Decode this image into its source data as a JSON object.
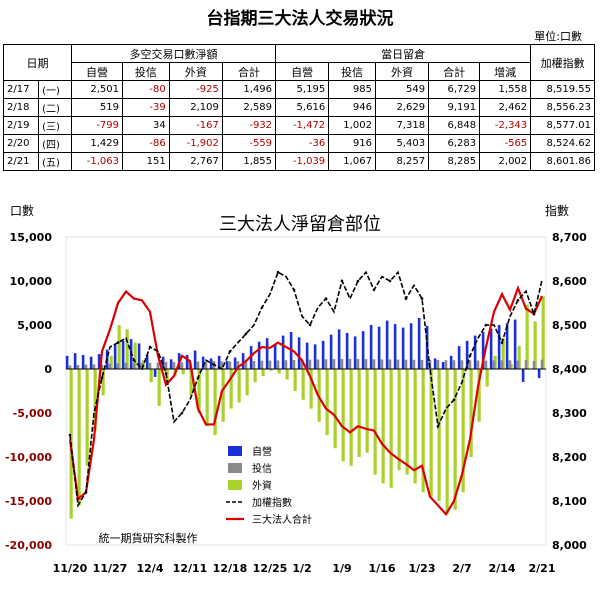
{
  "table": {
    "title": "台指期三大法人交易狀況",
    "unit": "單位:口數",
    "date_header": "日期",
    "group1": "多空交易口數淨額",
    "group2": "當日留倉",
    "index_header": "加權指數",
    "sub1": [
      "自營",
      "投信",
      "外資",
      "合計"
    ],
    "sub2": [
      "自營",
      "投信",
      "外資",
      "合計",
      "增減"
    ],
    "rows": [
      {
        "date": "2/17",
        "day": "(一)",
        "net": [
          "2,501",
          "-80",
          "-925",
          "1,496"
        ],
        "oi": [
          "5,195",
          "985",
          "549",
          "6,729",
          "1,558"
        ],
        "index": "8,519.55"
      },
      {
        "date": "2/18",
        "day": "(二)",
        "net": [
          "519",
          "-39",
          "2,109",
          "2,589"
        ],
        "oi": [
          "5,616",
          "946",
          "2,629",
          "9,191",
          "2,462"
        ],
        "index": "8,556.23"
      },
      {
        "date": "2/19",
        "day": "(三)",
        "net": [
          "-799",
          "34",
          "-167",
          "-932"
        ],
        "oi": [
          "-1,472",
          "1,002",
          "7,318",
          "6,848",
          "-2,343"
        ],
        "index": "8,577.01"
      },
      {
        "date": "2/20",
        "day": "(四)",
        "net": [
          "1,429",
          "-86",
          "-1,902",
          "-559"
        ],
        "oi": [
          "-36",
          "916",
          "5,403",
          "6,283",
          "-565"
        ],
        "index": "8,524.62"
      },
      {
        "date": "2/21",
        "day": "(五)",
        "net": [
          "-1,063",
          "151",
          "2,767",
          "1,855"
        ],
        "oi": [
          "-1,039",
          "1,067",
          "8,257",
          "8,285",
          "2,002"
        ],
        "index": "8,601.86"
      }
    ]
  },
  "chart_data": {
    "type": "bar",
    "title": "三大法人淨留倉部位",
    "ylabel": "口數",
    "y2label": "指數",
    "ylim": [
      -20000,
      15000
    ],
    "y2lim": [
      8000,
      8700
    ],
    "yticks": [
      "15,000",
      "10,000",
      "5,000",
      "0",
      "-5,000",
      "-10,000",
      "-15,000",
      "-20,000"
    ],
    "y2ticks": [
      "8,700",
      "8,600",
      "8,500",
      "8,400",
      "8,300",
      "8,200",
      "8,100",
      "8,000"
    ],
    "xticks": [
      "11/20",
      "11/27",
      "12/4",
      "12/11",
      "12/18",
      "12/25",
      "1/2",
      "1/9",
      "1/16",
      "1/23",
      "2/7",
      "2/14",
      "2/21"
    ],
    "xtick_index": [
      0,
      5,
      10,
      15,
      20,
      25,
      29,
      34,
      39,
      44,
      49,
      54,
      59
    ],
    "legend": [
      "自營",
      "投信",
      "外資",
      "加權指數",
      "三大法人合計"
    ],
    "legend_position": "bottom-left",
    "annotation": "統一期貨研究科製作",
    "colors": {
      "dealer": "#1a2fd6",
      "trust": "#8a8a8a",
      "foreign": "#a8d12a",
      "index": "#000000",
      "total": "#dd0000"
    },
    "series": [
      {
        "name": "自營",
        "values": [
          1500,
          1800,
          1600,
          1400,
          1700,
          2200,
          2800,
          3200,
          3400,
          2900,
          1600,
          -900,
          1400,
          1100,
          1800,
          1600,
          2100,
          1400,
          1200,
          1500,
          900,
          1300,
          1800,
          2600,
          3100,
          3500,
          2800,
          3800,
          4200,
          3600,
          3000,
          2800,
          3200,
          3900,
          4500,
          4100,
          3700,
          4300,
          5000,
          4800,
          5500,
          5100,
          4700,
          5200,
          5800,
          4900,
          1200,
          800,
          1500,
          2600,
          3200,
          3800,
          4200,
          4600,
          5000,
          5195,
          5616,
          -1472,
          -36,
          -1039
        ]
      },
      {
        "name": "投信",
        "values": [
          400,
          450,
          500,
          520,
          480,
          600,
          650,
          700,
          720,
          680,
          700,
          750,
          800,
          780,
          760,
          820,
          850,
          880,
          900,
          870,
          850,
          880,
          900,
          920,
          940,
          960,
          980,
          1000,
          1020,
          1040,
          1060,
          1080,
          1100,
          1120,
          1140,
          1150,
          1140,
          1120,
          1100,
          1090,
          1080,
          1070,
          1060,
          1050,
          1040,
          1030,
          1020,
          1010,
          1000,
          990,
          980,
          970,
          960,
          975,
          985,
          985,
          946,
          1002,
          916,
          1067
        ]
      },
      {
        "name": "外資",
        "values": [
          -17000,
          -15500,
          -11000,
          -7000,
          -3000,
          1500,
          5000,
          4500,
          3000,
          1000,
          -1500,
          -4200,
          -1500,
          -800,
          -600,
          -3000,
          -5000,
          -6500,
          -7500,
          -6000,
          -4500,
          -3800,
          -3000,
          -1500,
          -800,
          -200,
          -500,
          -1200,
          -2500,
          -3500,
          -4500,
          -6000,
          -7500,
          -9000,
          -10500,
          -11000,
          -10000,
          -9500,
          -12000,
          -13000,
          -13500,
          -11500,
          -12000,
          -13000,
          -14000,
          -14500,
          -15000,
          -16500,
          -16000,
          -14000,
          -10000,
          -6000,
          -2000,
          1500,
          3500,
          549,
          2629,
          7318,
          5403,
          8257
        ]
      },
      {
        "name": "三大法人合計",
        "values": [
          -8000,
          -14800,
          -14000,
          -8000,
          2000,
          4500,
          7500,
          8800,
          8000,
          7800,
          6500,
          1500,
          -1800,
          -800,
          1500,
          900,
          -4500,
          -6300,
          -6300,
          -2500,
          -1200,
          200,
          900,
          1800,
          2500,
          2400,
          3000,
          2500,
          2000,
          1000,
          -800,
          -3000,
          -4500,
          -5200,
          -6500,
          -7200,
          -6500,
          -6800,
          -7000,
          -8500,
          -9500,
          -10200,
          -10800,
          -11500,
          -11000,
          -14500,
          -15500,
          -16500,
          -15000,
          -12000,
          -8000,
          -2000,
          2500,
          6500,
          8500,
          6729,
          9191,
          6848,
          6283,
          8285
        ]
      },
      {
        "name": "加權指數",
        "values": [
          8250,
          8090,
          8120,
          8300,
          8380,
          8450,
          8460,
          8470,
          8420,
          8400,
          8450,
          8440,
          8390,
          8280,
          8300,
          8330,
          8380,
          8420,
          8410,
          8400,
          8440,
          8460,
          8480,
          8500,
          8540,
          8570,
          8620,
          8610,
          8580,
          8520,
          8500,
          8540,
          8560,
          8530,
          8600,
          8560,
          8600,
          8620,
          8580,
          8610,
          8600,
          8620,
          8560,
          8590,
          8560,
          8400,
          8270,
          8310,
          8330,
          8370,
          8430,
          8470,
          8500,
          8500,
          8460,
          8519.55,
          8556.23,
          8577.01,
          8524.62,
          8601.86
        ]
      }
    ]
  }
}
